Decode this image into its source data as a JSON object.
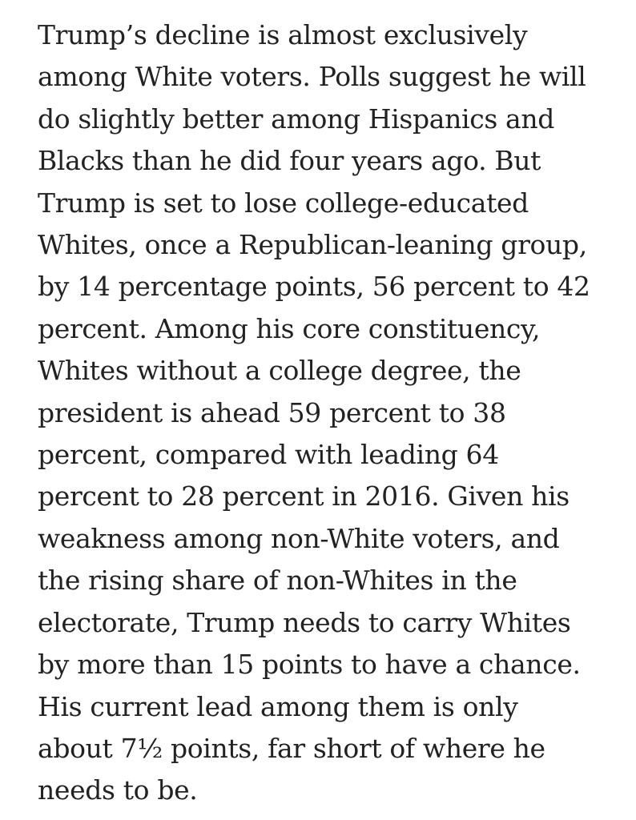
{
  "article": {
    "lines": [
      "Trump’s decline is almost exclusively",
      "among White voters. Polls suggest he will",
      "do slightly better among Hispanics and",
      "Blacks than he did four years ago. But",
      "Trump is set to lose college-educated",
      "Whites, once a Republican-leaning group,",
      "by 14 percentage points, 56 percent to 42",
      "percent. Among his core constituency,",
      "Whites without a college degree, the",
      "president is ahead 59 percent to 38",
      "percent, compared with leading 64",
      "percent to 28 percent in 2016. Given his",
      "weakness among non-White voters, and",
      "the rising share of non-Whites in the",
      "electorate, Trump needs to carry Whites",
      "by more than 15 points to have a chance.",
      "His current lead among them is only",
      "about 7½ points, far short of where he",
      "needs to be."
    ]
  }
}
